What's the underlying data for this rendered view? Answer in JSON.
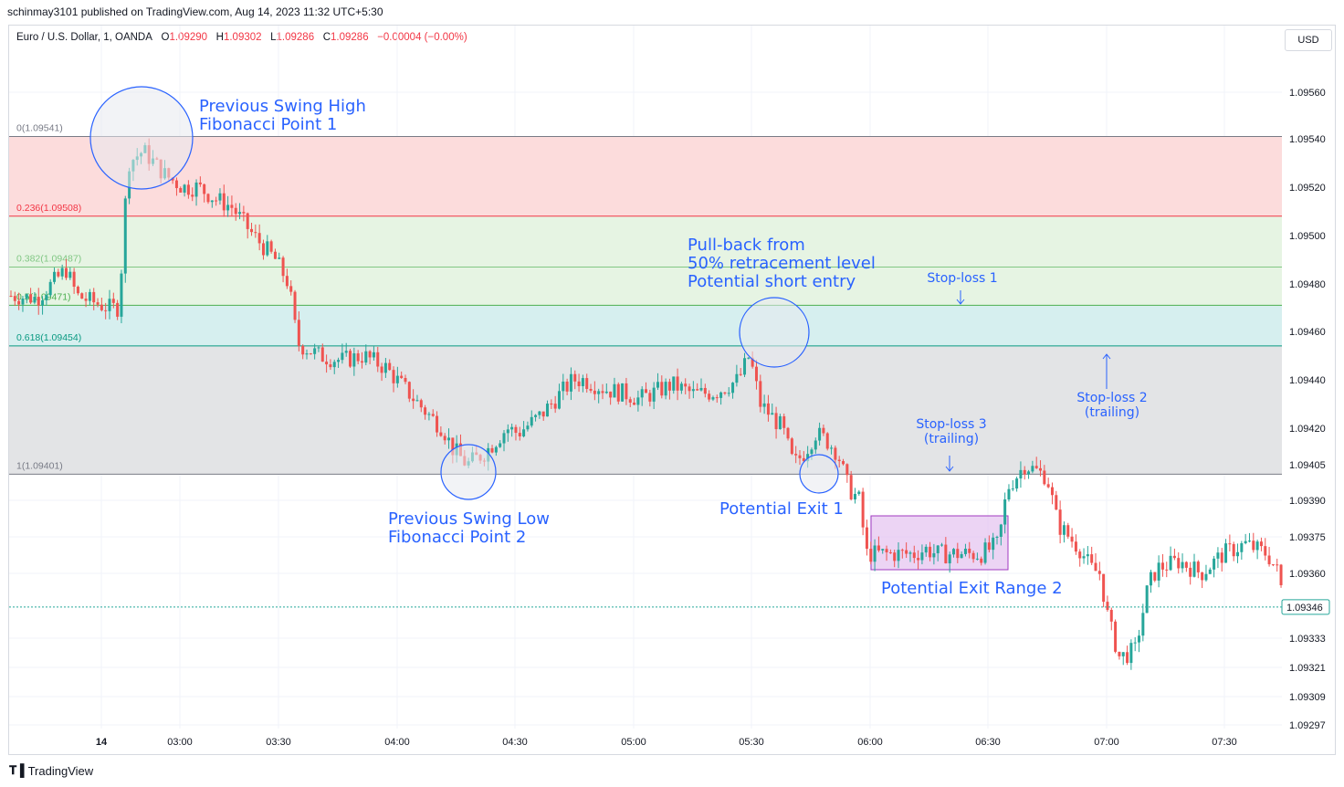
{
  "header": {
    "published": "schinmay3101 published on TradingView.com, Aug 14, 2023 11:32 UTC+5:30",
    "symbol": "Euro / U.S. Dollar, 1, OANDA",
    "o_label": "O",
    "o_value": "1.09290",
    "h_label": "H",
    "h_value": "1.09302",
    "l_label": "L",
    "l_value": "1.09286",
    "c_label": "C",
    "c_value": "1.09286",
    "change": "−0.00004 (−0.00%)",
    "currency": "USD"
  },
  "footer": {
    "brand": "TradingView",
    "logo": "tradingview-logo-icon"
  },
  "colors": {
    "up": "#26a69a",
    "down": "#ef5350",
    "annotation": "#2962ff",
    "zone_0_236": "#fcdcdc",
    "zone_236_382": "#e6f4e3",
    "zone_382_5": "#e6f4e3",
    "zone_5_618": "#d6efef",
    "zone_618_1": "#e3e4e6",
    "exit_box": "#e6c6f0"
  },
  "chart_data": {
    "type": "candlestick",
    "y_ticks": [
      "1.09560",
      "1.09540",
      "1.09520",
      "1.09500",
      "1.09480",
      "1.09460",
      "1.09440",
      "1.09420",
      "1.09405",
      "1.09390",
      "1.09375",
      "1.09360",
      "1.09333",
      "1.09321",
      "1.09309",
      "1.09297"
    ],
    "x_ticks": [
      "14",
      "03:00",
      "03:30",
      "04:00",
      "04:30",
      "05:00",
      "05:30",
      "06:00",
      "06:30",
      "07:00",
      "07:30"
    ],
    "last_price": "1.09346",
    "fib_levels": [
      {
        "ratio": "0",
        "label": "0(1.09541)",
        "price": 1.09541,
        "color": "#787b86"
      },
      {
        "ratio": "0.236",
        "label": "0.236(1.09508)",
        "price": 1.09508,
        "color": "#f23645"
      },
      {
        "ratio": "0.382",
        "label": "0.382(1.09487)",
        "price": 1.09487,
        "color": "#81c784"
      },
      {
        "ratio": "0.5",
        "label": "0.5(1.09471)",
        "price": 1.09471,
        "color": "#4caf50"
      },
      {
        "ratio": "0.618",
        "label": "0.618(1.09454)",
        "price": 1.09454,
        "color": "#089981"
      },
      {
        "ratio": "1",
        "label": "1(1.09401)",
        "price": 1.09401,
        "color": "#787b86"
      }
    ],
    "path": [
      [
        0,
        1.09475
      ],
      [
        1.2,
        1.09474
      ],
      [
        2.5,
        1.09486
      ],
      [
        3,
        1.09475
      ],
      [
        4.4,
        1.0947
      ],
      [
        4.9,
        1.0947
      ],
      [
        5.3,
        1.0953
      ],
      [
        6,
        1.09535
      ],
      [
        7,
        1.09525
      ],
      [
        7.8,
        1.0952
      ],
      [
        8.5,
        1.0952
      ],
      [
        9.3,
        1.09515
      ],
      [
        10,
        1.09512
      ],
      [
        11,
        1.095
      ],
      [
        12,
        1.0949
      ],
      [
        12.3,
        1.09485
      ],
      [
        12.6,
        1.0948
      ],
      [
        13,
        1.09455
      ],
      [
        14,
        1.0945
      ],
      [
        15,
        1.09448
      ],
      [
        16,
        1.0945
      ],
      [
        17,
        1.09445
      ],
      [
        18,
        1.09435
      ],
      [
        19,
        1.09425
      ],
      [
        19.6,
        1.0942
      ],
      [
        20,
        1.09412
      ],
      [
        20.7,
        1.09405
      ],
      [
        21.5,
        1.0941
      ],
      [
        22.5,
        1.0942
      ],
      [
        23,
        1.09418
      ],
      [
        24,
        1.09425
      ],
      [
        25,
        1.09435
      ],
      [
        25.5,
        1.0944
      ],
      [
        26,
        1.0944
      ],
      [
        27,
        1.09436
      ],
      [
        28,
        1.09434
      ],
      [
        28.5,
        1.09432
      ],
      [
        30,
        1.09438
      ],
      [
        31,
        1.09434
      ],
      [
        32,
        1.09435
      ],
      [
        33,
        1.0944
      ],
      [
        33.5,
        1.0945
      ],
      [
        34,
        1.0943
      ],
      [
        35,
        1.0942
      ],
      [
        35.5,
        1.09405
      ],
      [
        36,
        1.0941
      ],
      [
        36.5,
        1.09418
      ],
      [
        37,
        1.09415
      ],
      [
        37.5,
        1.0941
      ],
      [
        38,
        1.09395
      ],
      [
        38.5,
        1.0939
      ],
      [
        38.8,
        1.09368
      ],
      [
        41,
        1.09368
      ],
      [
        41.5,
        1.0937
      ],
      [
        42,
        1.09368
      ],
      [
        44,
        1.09368
      ],
      [
        44.8,
        1.09372
      ],
      [
        45.2,
        1.09395
      ],
      [
        46,
        1.09405
      ],
      [
        47,
        1.094
      ],
      [
        47.5,
        1.0938
      ],
      [
        48,
        1.09375
      ],
      [
        48.5,
        1.0937
      ],
      [
        49,
        1.09362
      ],
      [
        49.4,
        1.0936
      ],
      [
        49.8,
        1.0934
      ],
      [
        50.3,
        1.09325
      ],
      [
        51,
        1.09328
      ],
      [
        51.6,
        1.09355
      ],
      [
        52,
        1.09362
      ],
      [
        53,
        1.09365
      ],
      [
        54,
        1.0936
      ],
      [
        55,
        1.09368
      ],
      [
        56,
        1.09372
      ],
      [
        57,
        1.09368
      ],
      [
        57.5,
        1.0936
      ],
      [
        57.8,
        1.09346
      ]
    ],
    "annotations": [
      {
        "key": "swing_high",
        "lines": [
          "Previous Swing High",
          "Fibonacci Point 1"
        ]
      },
      {
        "key": "swing_low",
        "lines": [
          "Previous Swing Low",
          "Fibonacci Point 2"
        ]
      },
      {
        "key": "pullback",
        "lines": [
          "Pull-back from",
          "50% retracement level",
          "Potential short entry"
        ]
      },
      {
        "key": "exit1",
        "lines": [
          "Potential Exit 1"
        ]
      },
      {
        "key": "exit2",
        "lines": [
          "Potential Exit Range 2"
        ]
      },
      {
        "key": "sl1",
        "lines": [
          "Stop-loss 1"
        ]
      },
      {
        "key": "sl2",
        "lines": [
          "Stop-loss 2",
          "(trailing)"
        ]
      },
      {
        "key": "sl3",
        "lines": [
          "Stop-loss 3",
          "(trailing)"
        ]
      }
    ]
  }
}
